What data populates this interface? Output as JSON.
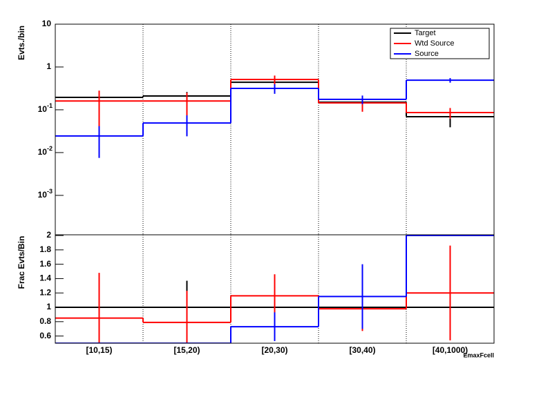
{
  "chart_data": [
    {
      "type": "step",
      "y_label": "Evts./bin",
      "log_y": true,
      "legend": "top-right",
      "ylim": [
        0.00012,
        10
      ],
      "yticks": [
        {
          "value": 10,
          "label": "10"
        },
        {
          "value": 1,
          "label": "1"
        },
        {
          "value": 0.1,
          "label": "10",
          "exponent": "-1"
        },
        {
          "value": 0.01,
          "label": "10",
          "exponent": "-2"
        },
        {
          "value": 0.001,
          "label": "10",
          "exponent": "-3"
        }
      ],
      "series": [
        {
          "name": "Target",
          "color": "#000000",
          "values": [
            0.195,
            0.21,
            0.44,
            0.15,
            0.069
          ],
          "errors": [
            0,
            0.05,
            0.1,
            0.04,
            0.03
          ]
        },
        {
          "name": "Wtd Source",
          "color": "#ff0000",
          "values": [
            0.16,
            0.16,
            0.51,
            0.145,
            0.086
          ],
          "errors": [
            0.12,
            0.09,
            0.12,
            0.055,
            0.024
          ]
        },
        {
          "name": "Source",
          "color": "#0000ff",
          "values": [
            0.0245,
            0.049,
            0.316,
            0.175,
            0.49
          ],
          "errors": [
            0.017,
            0.025,
            0.08,
            0.04,
            0.06
          ]
        }
      ]
    },
    {
      "type": "step",
      "y_label": "Frac Evts/Bin",
      "x_label": "EmaxFcell",
      "categories": [
        "[10,15)",
        "[15,20)",
        "[20,30)",
        "[30,40)",
        "[40,1000)"
      ],
      "ylim": [
        0.5,
        2.01
      ],
      "yticks": [
        0.6,
        0.8,
        1,
        1.2,
        1.4,
        1.6,
        1.8,
        2
      ],
      "series": [
        {
          "name": "Target",
          "color": "#000000",
          "values": [
            1,
            1,
            1,
            1,
            1
          ],
          "errors": [
            0,
            0.37,
            0,
            0,
            0
          ]
        },
        {
          "name": "Wtd Source",
          "color": "#ff0000",
          "values": [
            0.85,
            0.79,
            1.16,
            0.98,
            1.2
          ],
          "errors": [
            0.63,
            0.44,
            0.3,
            0.31,
            0.66
          ]
        },
        {
          "name": "Source",
          "color": "#0000ff",
          "values": [
            0.5,
            0.5,
            0.73,
            1.15,
            2.0
          ],
          "errors": [
            0,
            0,
            0.2,
            0.45,
            0
          ]
        }
      ]
    }
  ]
}
